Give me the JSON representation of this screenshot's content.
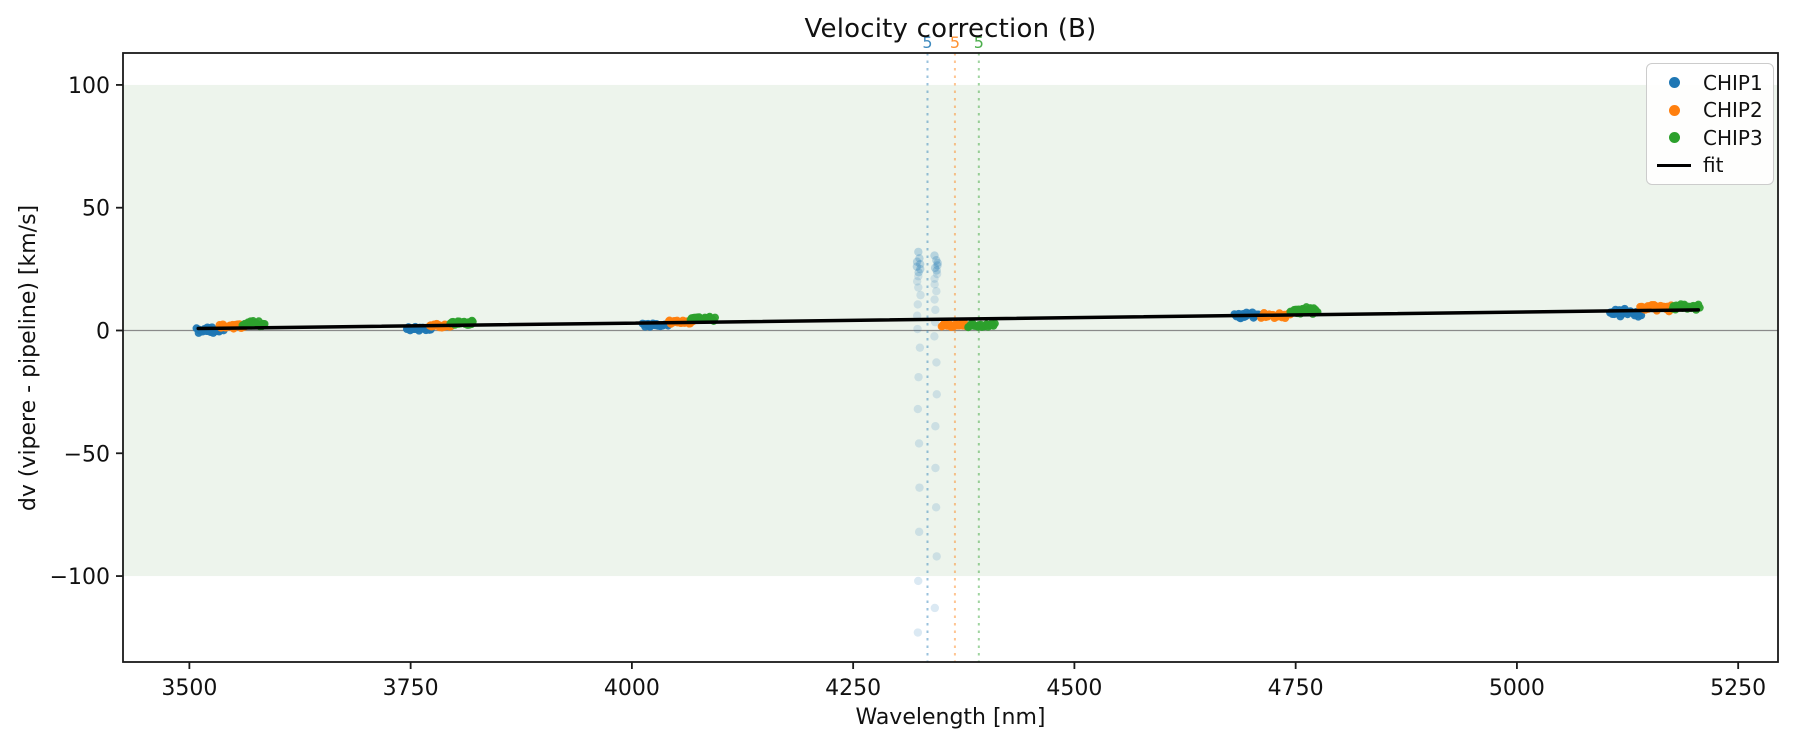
{
  "chart_data": {
    "type": "scatter",
    "title": "Velocity correction (B)",
    "xlabel": "Wavelength [nm]",
    "ylabel": "dv (vipere - pipeline) [km/s]",
    "xlim": [
      3425,
      5295
    ],
    "ylim": [
      -135,
      113
    ],
    "xticks": [
      3500,
      3750,
      4000,
      4250,
      4500,
      4750,
      5000,
      5250
    ],
    "yticks": [
      100,
      50,
      0,
      -50,
      -100
    ],
    "grid": false,
    "band": {
      "dv_min": -100,
      "dv_max": 100,
      "color": "#edf4ec"
    },
    "zero_line": {
      "dv": 0,
      "color": "#8a8a8a"
    },
    "colors": {
      "CHIP1": "#1f77b4",
      "CHIP2": "#ff7f0e",
      "CHIP3": "#2ca02c",
      "fit": "#000000"
    },
    "legend": {
      "position": "upper right",
      "entries": [
        {
          "label": "CHIP1",
          "marker": "dot",
          "color": "#1f77b4"
        },
        {
          "label": "CHIP2",
          "marker": "dot",
          "color": "#ff7f0e"
        },
        {
          "label": "CHIP3",
          "marker": "dot",
          "color": "#2ca02c"
        },
        {
          "label": "fit",
          "marker": "line",
          "color": "#000000"
        }
      ]
    },
    "vlines": [
      {
        "x": 4334,
        "label": "5",
        "color": "#1f77b4"
      },
      {
        "x": 4365,
        "label": "5",
        "color": "#ff7f0e"
      },
      {
        "x": 4392,
        "label": "5",
        "color": "#2ca02c"
      }
    ],
    "clusters": [
      {
        "series": "CHIP1",
        "wl": [
          3508,
          3539
        ],
        "dv": [
          -1.2,
          1.4
        ],
        "n": 24
      },
      {
        "series": "CHIP2",
        "wl": [
          3534,
          3563
        ],
        "dv": [
          0.5,
          3.0
        ],
        "n": 24
      },
      {
        "series": "CHIP3",
        "wl": [
          3560,
          3586
        ],
        "dv": [
          1.3,
          4.0
        ],
        "n": 24
      },
      {
        "series": "CHIP1",
        "wl": [
          3745,
          3773
        ],
        "dv": [
          -0.3,
          1.5
        ],
        "n": 24
      },
      {
        "series": "CHIP2",
        "wl": [
          3771,
          3799
        ],
        "dv": [
          1.1,
          2.9
        ],
        "n": 24
      },
      {
        "series": "CHIP3",
        "wl": [
          3795,
          3821
        ],
        "dv": [
          2.0,
          4.3
        ],
        "n": 24
      },
      {
        "series": "CHIP1",
        "wl": [
          4012,
          4041
        ],
        "dv": [
          1.1,
          3.4
        ],
        "n": 24
      },
      {
        "series": "CHIP2",
        "wl": [
          4041,
          4069
        ],
        "dv": [
          2.3,
          4.5
        ],
        "n": 24
      },
      {
        "series": "CHIP3",
        "wl": [
          4066,
          4094
        ],
        "dv": [
          3.7,
          5.8
        ],
        "n": 24
      },
      {
        "series": "CHIP2",
        "wl": [
          4349,
          4379
        ],
        "dv": [
          1.1,
          3.5
        ],
        "n": 24
      },
      {
        "series": "CHIP3",
        "wl": [
          4379,
          4411
        ],
        "dv": [
          1.1,
          3.4
        ],
        "n": 24
      },
      {
        "series": "CHIP1",
        "wl": [
          4680,
          4711
        ],
        "dv": [
          4.6,
          8.0
        ],
        "n": 24
      },
      {
        "series": "CHIP2",
        "wl": [
          4711,
          4745
        ],
        "dv": [
          4.4,
          7.4
        ],
        "n": 24
      },
      {
        "series": "CHIP3",
        "wl": [
          4744,
          4775
        ],
        "dv": [
          6.6,
          9.6
        ],
        "n": 24
      },
      {
        "series": "CHIP1",
        "wl": [
          5104,
          5141
        ],
        "dv": [
          5.3,
          9.0
        ],
        "n": 26
      },
      {
        "series": "CHIP2",
        "wl": [
          5139,
          5175
        ],
        "dv": [
          7.3,
          11.6
        ],
        "n": 26
      },
      {
        "series": "CHIP3",
        "wl": [
          5175,
          5207
        ],
        "dv": [
          7.9,
          11.3
        ],
        "n": 26
      }
    ],
    "outlier_streak": {
      "series": "CHIP1",
      "wl_center": 4334,
      "wl_offsets": [
        -10,
        10
      ],
      "dv_values": [
        32,
        30.5,
        29.4,
        28.6,
        28.0,
        27.5,
        27.0,
        26.5,
        26.0,
        25.5,
        25.0,
        24.4,
        23.7,
        23.0,
        22.1,
        21.1,
        20.0,
        18.8,
        17.5,
        16.0,
        14.4,
        12.6,
        10.6,
        8.4,
        6.0,
        3.4,
        0.6,
        -2.4,
        -7,
        -13,
        -19,
        -26,
        -32,
        -39,
        -46,
        -56,
        -64,
        -72,
        -82,
        -92,
        -102,
        -113,
        -123
      ],
      "point_opacity": 0.16
    },
    "fit_line": {
      "x": [
        3510,
        5205
      ],
      "y": [
        0.8,
        8.4
      ],
      "label": "fit"
    }
  }
}
